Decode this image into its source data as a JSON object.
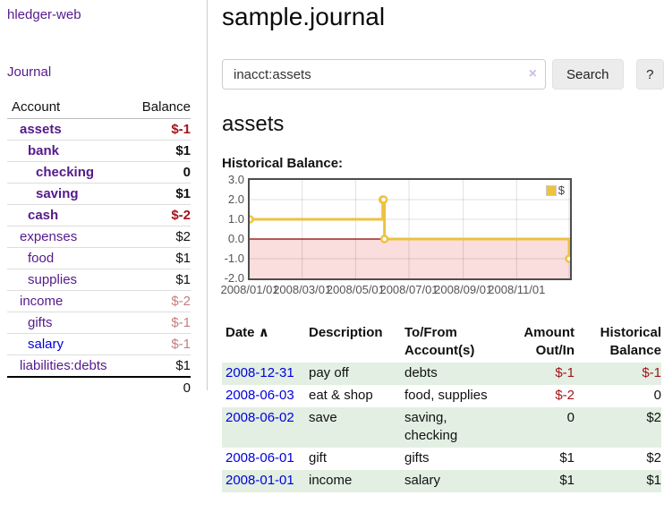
{
  "app": {
    "brand": "hledger-web",
    "nav_journal": "Journal"
  },
  "colors": {
    "link_purple": "#551A8B",
    "link_blue": "#0000dd",
    "negative_strong": "#a1151a",
    "negative_soft": "#c47e7e",
    "row_stripe_green": "#e2efe2",
    "chart_series_gold": "#EDC240"
  },
  "sidebar": {
    "headers": {
      "account": "Account",
      "balance": "Balance"
    },
    "accounts": [
      {
        "name": "assets",
        "depth": 0,
        "balance": "$-1",
        "bold": true
      },
      {
        "name": "bank",
        "depth": 1,
        "balance": "$1",
        "bold": true
      },
      {
        "name": "checking",
        "depth": 2,
        "balance": "0",
        "bold": true
      },
      {
        "name": "saving",
        "depth": 2,
        "balance": "$1",
        "bold": true
      },
      {
        "name": "cash",
        "depth": 1,
        "balance": "$-2",
        "bold": true
      },
      {
        "name": "expenses",
        "depth": 0,
        "balance": "$2",
        "bold": false
      },
      {
        "name": "food",
        "depth": 1,
        "balance": "$1",
        "bold": false
      },
      {
        "name": "supplies",
        "depth": 1,
        "balance": "$1",
        "bold": false
      },
      {
        "name": "income",
        "depth": 0,
        "balance": "$-2",
        "bold": false
      },
      {
        "name": "gifts",
        "depth": 1,
        "balance": "$-1",
        "bold": false
      },
      {
        "name": "salary",
        "depth": 1,
        "balance": "$-1",
        "bold": false,
        "link_color": "blue"
      },
      {
        "name": "liabilities:debts",
        "depth": 0,
        "balance": "$1",
        "bold": false
      }
    ],
    "total": "0"
  },
  "header": {
    "title": "sample.journal"
  },
  "search": {
    "value": "inacct:assets",
    "clear_icon": "×",
    "button_label": "Search",
    "help_label": "?"
  },
  "account_page": {
    "title": "assets",
    "chart_label": "Historical Balance:"
  },
  "chart_data": {
    "type": "line",
    "line_style": "step",
    "title": "Historical Balance",
    "series": [
      {
        "name": "$",
        "color": "#EDC240",
        "points": [
          [
            "2008-01-01",
            1
          ],
          [
            "2008-06-01",
            2
          ],
          [
            "2008-06-02",
            2
          ],
          [
            "2008-06-03",
            0
          ],
          [
            "2008-12-31",
            -1
          ]
        ]
      }
    ],
    "xrange": [
      "2008-01-01",
      "2009-01-01"
    ],
    "xticks": [
      "2008/01/01",
      "2008/03/01",
      "2008/05/01",
      "2008/07/01",
      "2008/09/01",
      "2008/11/01"
    ],
    "xgridlines": [
      "2008/03/01",
      "2008/05/01",
      "2008/07/01",
      "2008/09/01",
      "2008/11/01",
      "2009/01/01"
    ],
    "ylim": [
      -2,
      3
    ],
    "yticks": [
      3,
      2,
      1,
      0,
      -1,
      -2
    ],
    "ytick_labels": [
      "3.0",
      "2.0",
      "1.0",
      "0.0",
      "-1.0",
      "-2.0"
    ],
    "grid": true,
    "legend_position": "top-right",
    "negative_fill": "#fadddd",
    "zero_line_color": "#8b0000",
    "point_fill": "#ffffff"
  },
  "register": {
    "headers": [
      "Date",
      "Description",
      "To/From Account(s)",
      "Amount Out/In",
      "Historical Balance"
    ],
    "sort_indicator": "∧",
    "rows": [
      {
        "date": "2008-12-31",
        "description": "pay off",
        "accounts": "debts",
        "amount": "$-1",
        "balance": "$-1"
      },
      {
        "date": "2008-06-03",
        "description": "eat & shop",
        "accounts": "food, supplies",
        "amount": "$-2",
        "balance": "0"
      },
      {
        "date": "2008-06-02",
        "description": "save",
        "accounts": "saving, checking",
        "amount": "0",
        "balance": "$2"
      },
      {
        "date": "2008-06-01",
        "description": "gift",
        "accounts": "gifts",
        "amount": "$1",
        "balance": "$2"
      },
      {
        "date": "2008-01-01",
        "description": "income",
        "accounts": "salary",
        "amount": "$1",
        "balance": "$1"
      }
    ]
  }
}
